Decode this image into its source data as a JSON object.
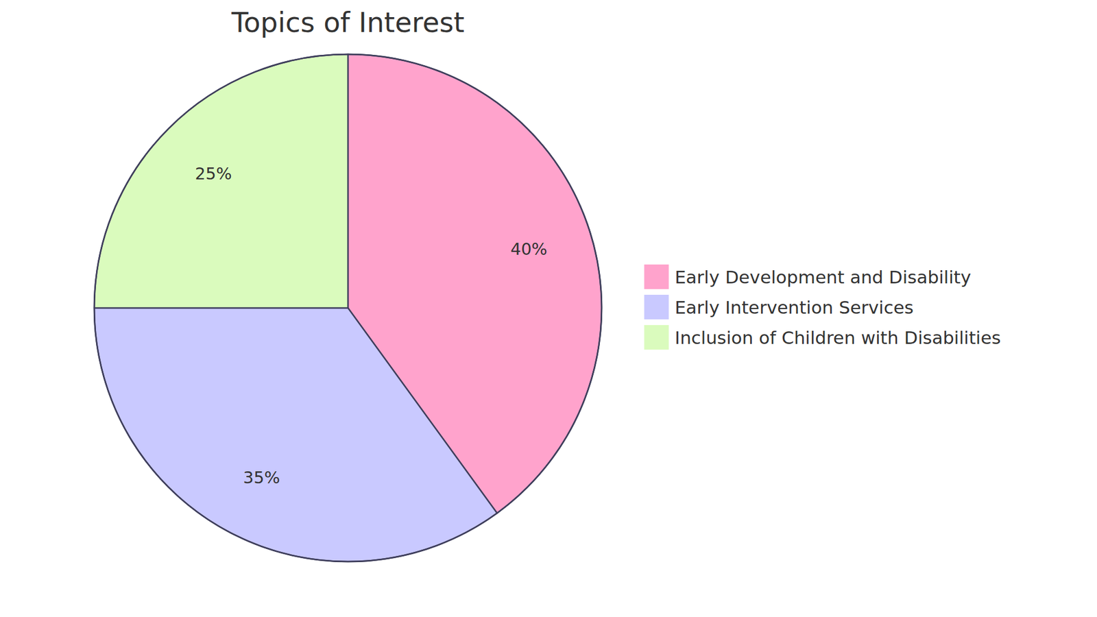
{
  "chart_data": {
    "type": "pie",
    "title": "Topics of Interest",
    "categories": [
      "Early Development and Disability",
      "Early Intervention Services",
      "Inclusion of Children with Disabilities"
    ],
    "values": [
      40,
      35,
      25
    ],
    "value_labels": [
      "40%",
      "35%",
      "25%"
    ],
    "colors": [
      "#ffa3cc",
      "#c9c9ff",
      "#dafbbd"
    ],
    "data_labels": true,
    "legend": "right"
  }
}
